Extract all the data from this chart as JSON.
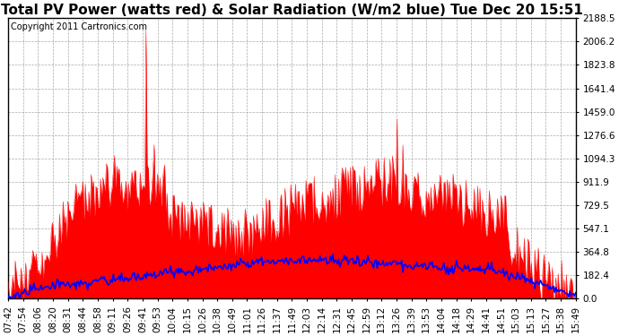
{
  "title": "Total PV Power (watts red) & Solar Radiation (W/m2 blue) Tue Dec 20 15:51",
  "copyright_text": "Copyright 2011 Cartronics.com",
  "y_max": 2188.5,
  "y_ticks": [
    0.0,
    182.4,
    364.8,
    547.1,
    729.5,
    911.9,
    1094.3,
    1276.6,
    1459.0,
    1641.4,
    1823.8,
    2006.2,
    2188.5
  ],
  "x_labels": [
    "07:42",
    "07:54",
    "08:06",
    "08:20",
    "08:31",
    "08:44",
    "08:58",
    "09:11",
    "09:26",
    "09:41",
    "09:53",
    "10:04",
    "10:15",
    "10:26",
    "10:38",
    "10:49",
    "11:01",
    "11:26",
    "11:37",
    "11:49",
    "12:03",
    "12:14",
    "12:31",
    "12:45",
    "12:59",
    "13:12",
    "13:26",
    "13:39",
    "13:53",
    "14:04",
    "14:18",
    "14:29",
    "14:41",
    "14:51",
    "15:03",
    "15:13",
    "15:27",
    "15:38",
    "15:49"
  ],
  "background_color": "#ffffff",
  "plot_bg_color": "#ffffff",
  "grid_color": "#aaaaaa",
  "red_color": "#ff0000",
  "blue_color": "#0000ff",
  "title_fontsize": 11,
  "tick_fontsize": 7.5,
  "copyright_fontsize": 7
}
